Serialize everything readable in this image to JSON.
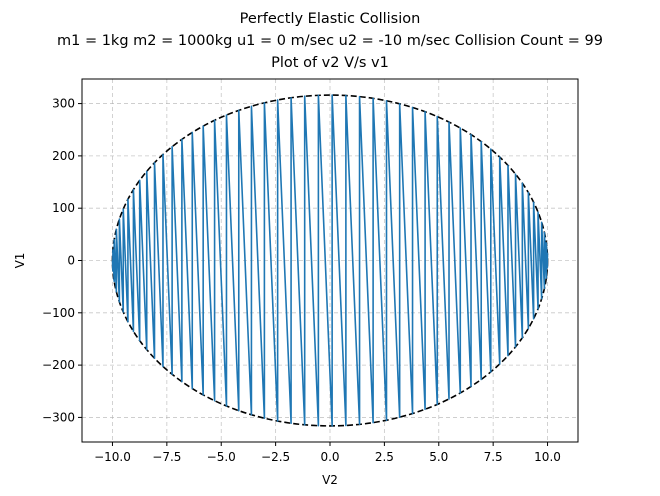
{
  "chart_data": {
    "type": "line",
    "title_lines": [
      "Perfectly Elastic Collision",
      "m1 = 1kg  m2 = 1000kg  u1 = 0 m/sec  u2 = -10 m/sec Collision Count = 99",
      "Plot of v2 V/s v1"
    ],
    "xlabel": "V2",
    "ylabel": "V1",
    "xlim": [
      -11.4,
      11.4
    ],
    "ylim": [
      -347,
      347
    ],
    "xticks": [
      -10,
      -7.5,
      -5,
      -2.5,
      0,
      2.5,
      5,
      7.5,
      10
    ],
    "xtick_labels": [
      "−10.0",
      "−7.5",
      "−5.0",
      "−2.5",
      "0.0",
      "2.5",
      "5.0",
      "7.5",
      "10.0"
    ],
    "yticks": [
      -300,
      -200,
      -100,
      0,
      100,
      200,
      300
    ],
    "ytick_labels": [
      "−300",
      "−200",
      "−100",
      "0",
      "100",
      "200",
      "300"
    ],
    "grid": true,
    "params": {
      "m1": 1,
      "m2": 1000,
      "u1": 0,
      "u2": -10,
      "collision_count": 99
    },
    "series": [
      {
        "style": "solid",
        "color": "#1f77b4",
        "description": "trajectory (v2, v1) of successive collisions"
      },
      {
        "style": "dashed",
        "color": "#000000",
        "description": "energy conservation ellipse, v2 amplitude 10, v1 amplitude 316.23"
      }
    ]
  }
}
